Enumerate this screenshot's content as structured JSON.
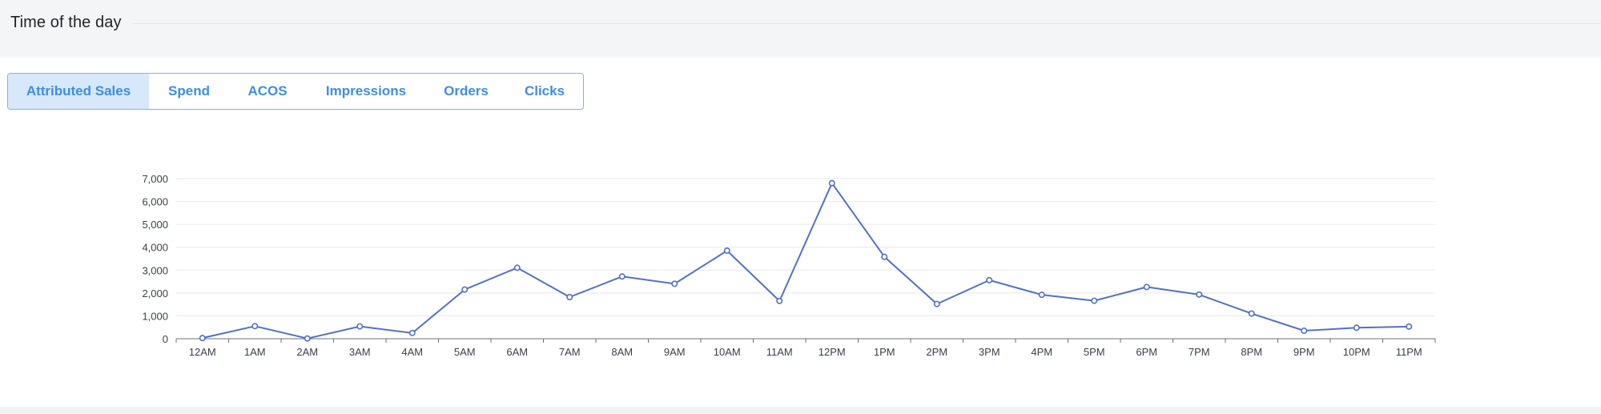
{
  "header": {
    "title": "Time of the day"
  },
  "tabs": [
    {
      "label": "Attributed Sales",
      "active": true
    },
    {
      "label": "Spend",
      "active": false
    },
    {
      "label": "ACOS",
      "active": false
    },
    {
      "label": "Impressions",
      "active": false
    },
    {
      "label": "Orders",
      "active": false
    },
    {
      "label": "Clicks",
      "active": false
    }
  ],
  "colors": {
    "accent": "#3d8ee3",
    "active_tab_bg": "#d7e8fb",
    "line": "#5470c6"
  },
  "chart_data": {
    "type": "line",
    "categories": [
      "12AM",
      "1AM",
      "2AM",
      "3AM",
      "4AM",
      "5AM",
      "6AM",
      "7AM",
      "8AM",
      "9AM",
      "10AM",
      "11AM",
      "12PM",
      "1PM",
      "2PM",
      "3PM",
      "4PM",
      "5PM",
      "6PM",
      "7PM",
      "8PM",
      "9PM",
      "10PM",
      "11PM"
    ],
    "values": [
      30,
      550,
      10,
      540,
      250,
      2150,
      3100,
      1820,
      2720,
      2400,
      3850,
      1650,
      6800,
      3580,
      1520,
      2560,
      1920,
      1660,
      2260,
      1930,
      1100,
      350,
      480,
      530
    ],
    "ylim": [
      0,
      7000
    ],
    "yticks": [
      0,
      1000,
      2000,
      3000,
      4000,
      5000,
      6000,
      7000
    ],
    "ytick_labels": [
      "0",
      "1,000",
      "2,000",
      "3,000",
      "4,000",
      "5,000",
      "6,000",
      "7,000"
    ],
    "grid": true
  }
}
